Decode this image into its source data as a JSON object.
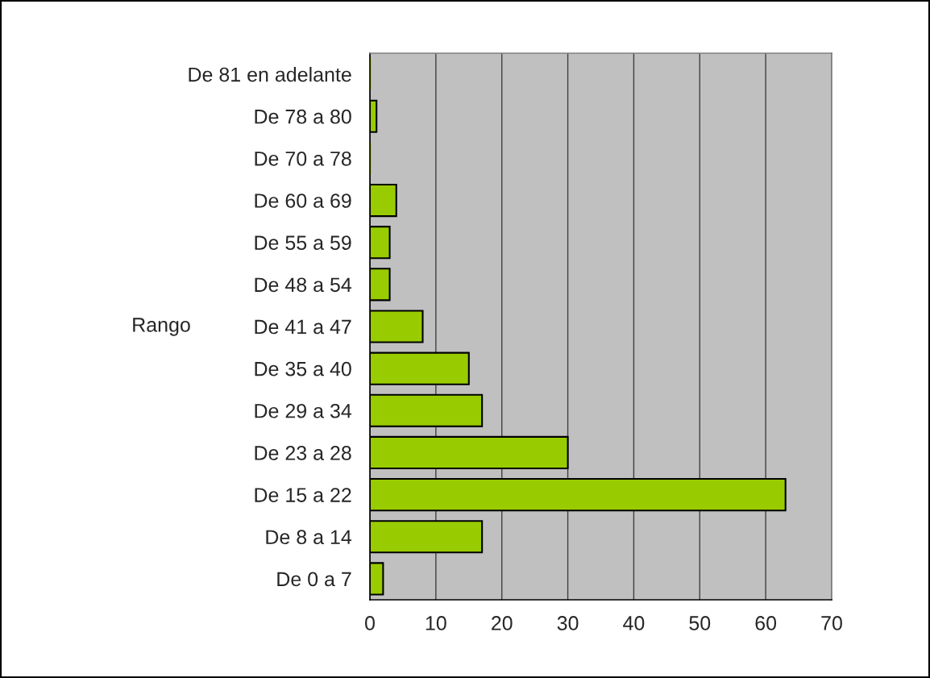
{
  "chart_data": {
    "type": "bar",
    "orientation": "horizontal",
    "ylabel": "Rango",
    "categories": [
      "De 81 en adelante",
      "De 78 a 80",
      "De 70 a 78",
      "De 60 a 69",
      "De 55 a 59",
      "De 48 a 54",
      "De 41 a 47",
      "De 35 a 40",
      "De 29 a 34",
      "De 23 a 28",
      "De 15 a 22",
      "De 8 a 14",
      "De 0 a 7"
    ],
    "values": [
      0,
      1,
      0,
      4,
      3,
      3,
      8,
      15,
      17,
      30,
      63,
      17,
      2
    ],
    "color": "#99cc00",
    "xlim": [
      0,
      70
    ],
    "xticks": [
      0,
      10,
      20,
      30,
      40,
      50,
      60,
      70
    ],
    "grid": "x"
  }
}
